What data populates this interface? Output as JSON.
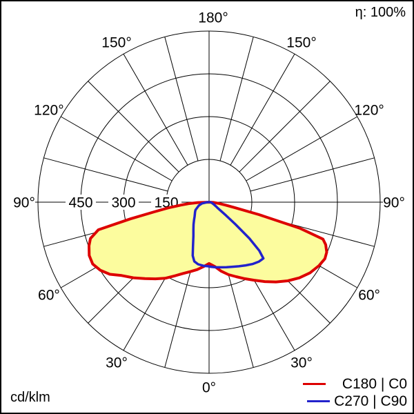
{
  "corner": {
    "efficiency": "η: 100%",
    "unit": "cd/klm"
  },
  "legend": [
    {
      "label": "C180 | C0",
      "color": "#dd0000"
    },
    {
      "label": "C270 | C90",
      "color": "#2222cc"
    }
  ],
  "chart_data": {
    "type": "polar",
    "subtype": "photometric-intensity-distribution",
    "title": "",
    "unit": "cd/klm",
    "efficiency": "η: 100%",
    "angle_zero_position": "bottom",
    "spoke_step_deg": 15,
    "angle_label_step_deg": 30,
    "angle_labels": [
      "0°",
      "30°",
      "60°",
      "90°",
      "120°",
      "150°",
      "180°"
    ],
    "radial_ticks": [
      450,
      300,
      150
    ],
    "radial_max": 600,
    "grid_color": "#000000",
    "series": [
      {
        "name": "C180 | C0",
        "color": "#dd0000",
        "fill": "#fcfc9e",
        "stroke_width": 4,
        "left_gamma_value": [
          [
            90,
            0
          ],
          [
            88,
            40
          ],
          [
            86,
            72
          ],
          [
            84,
            100
          ],
          [
            82,
            145
          ],
          [
            80,
            195
          ],
          [
            78,
            282
          ],
          [
            76,
            400
          ],
          [
            73,
            435
          ],
          [
            70,
            448
          ],
          [
            66,
            460
          ],
          [
            62,
            462
          ],
          [
            58,
            450
          ],
          [
            54,
            430
          ],
          [
            50,
            400
          ],
          [
            45,
            375
          ],
          [
            40,
            350
          ],
          [
            35,
            328
          ],
          [
            30,
            308
          ],
          [
            25,
            285
          ],
          [
            20,
            266
          ],
          [
            15,
            252
          ],
          [
            10,
            240
          ],
          [
            5,
            227
          ],
          [
            0,
            215
          ]
        ],
        "right_gamma_value": [
          [
            0,
            215
          ],
          [
            5,
            226
          ],
          [
            10,
            246
          ],
          [
            15,
            263
          ],
          [
            20,
            278
          ],
          [
            25,
            296
          ],
          [
            30,
            316
          ],
          [
            35,
            340
          ],
          [
            40,
            365
          ],
          [
            45,
            390
          ],
          [
            50,
            413
          ],
          [
            55,
            432
          ],
          [
            60,
            445
          ],
          [
            64,
            452
          ],
          [
            67,
            448
          ],
          [
            70,
            435
          ],
          [
            72,
            420
          ],
          [
            74,
            330
          ],
          [
            76,
            180
          ],
          [
            78,
            90
          ],
          [
            80,
            58
          ],
          [
            83,
            32
          ],
          [
            86,
            15
          ],
          [
            90,
            0
          ]
        ]
      },
      {
        "name": "C270 | C90",
        "color": "#2222cc",
        "fill": "none",
        "stroke_width": 3.5,
        "left_gamma_value": [
          [
            90,
            6
          ],
          [
            80,
            25
          ],
          [
            72,
            38
          ],
          [
            65,
            46
          ],
          [
            60,
            55
          ],
          [
            55,
            60
          ],
          [
            50,
            65
          ],
          [
            45,
            72
          ],
          [
            40,
            82
          ],
          [
            35,
            95
          ],
          [
            30,
            110
          ],
          [
            25,
            130
          ],
          [
            20,
            165
          ],
          [
            17,
            196
          ],
          [
            14,
            214
          ],
          [
            10,
            221
          ],
          [
            5,
            224
          ],
          [
            0,
            225
          ]
        ],
        "right_gamma_value": [
          [
            0,
            226
          ],
          [
            5,
            229
          ],
          [
            10,
            232
          ],
          [
            15,
            236
          ],
          [
            20,
            241
          ],
          [
            25,
            248
          ],
          [
            30,
            256
          ],
          [
            35,
            265
          ],
          [
            40,
            272
          ],
          [
            44,
            274
          ],
          [
            46,
            245
          ],
          [
            48,
            190
          ],
          [
            50,
            120
          ],
          [
            52,
            75
          ],
          [
            54,
            48
          ],
          [
            56,
            36
          ],
          [
            60,
            26
          ],
          [
            65,
            18
          ],
          [
            72,
            12
          ],
          [
            80,
            8
          ],
          [
            90,
            4
          ]
        ]
      }
    ]
  }
}
